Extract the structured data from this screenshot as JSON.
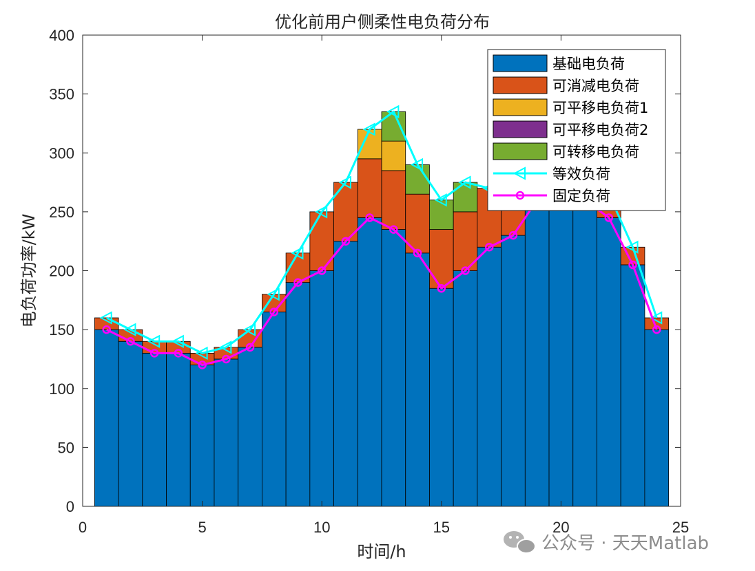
{
  "chart_data": {
    "type": "bar",
    "stacked": true,
    "title": "优化前用户侧柔性电负荷分布",
    "xlabel": "时间/h",
    "ylabel": "电负荷功率/kW",
    "xlim": [
      0,
      25
    ],
    "ylim": [
      0,
      400
    ],
    "xticks": [
      "0",
      "5",
      "10",
      "15",
      "20",
      "25"
    ],
    "yticks": [
      "0",
      "50",
      "100",
      "150",
      "200",
      "250",
      "300",
      "350",
      "400"
    ],
    "x": [
      1,
      2,
      3,
      4,
      5,
      6,
      7,
      8,
      9,
      10,
      11,
      12,
      13,
      14,
      15,
      16,
      17,
      18,
      19,
      20,
      21,
      22,
      23,
      24
    ],
    "series": [
      {
        "name": "基础电负荷",
        "color": "#0072BD",
        "values": [
          150,
          140,
          130,
          130,
          120,
          125,
          135,
          165,
          190,
          200,
          225,
          245,
          235,
          215,
          185,
          200,
          220,
          230,
          260,
          260,
          260,
          245,
          205,
          150
        ]
      },
      {
        "name": "可消减电负荷",
        "color": "#D95319",
        "values": [
          10,
          10,
          10,
          10,
          10,
          10,
          15,
          15,
          25,
          50,
          50,
          50,
          50,
          50,
          50,
          50,
          50,
          45,
          10,
          10,
          10,
          10,
          15,
          10
        ]
      },
      {
        "name": "可平移电负荷1",
        "color": "#EDB120",
        "values": [
          0,
          0,
          0,
          0,
          0,
          0,
          0,
          0,
          0,
          0,
          0,
          25,
          25,
          0,
          0,
          0,
          0,
          0,
          0,
          0,
          0,
          0,
          0,
          0
        ]
      },
      {
        "name": "可平移电负荷2",
        "color": "#7E2F8E",
        "values": [
          0,
          0,
          0,
          0,
          0,
          0,
          0,
          0,
          0,
          0,
          0,
          0,
          0,
          0,
          0,
          0,
          0,
          0,
          0,
          0,
          0,
          0,
          0,
          0
        ]
      },
      {
        "name": "可转移电负荷",
        "color": "#77AC30",
        "values": [
          0,
          0,
          0,
          0,
          0,
          0,
          0,
          0,
          0,
          0,
          0,
          0,
          25,
          25,
          25,
          25,
          0,
          0,
          0,
          0,
          0,
          0,
          0,
          0
        ]
      }
    ],
    "lines": [
      {
        "name": "等效负荷",
        "color": "#00FFFF",
        "marker": "triangle-left",
        "values": [
          160,
          150,
          140,
          140,
          130,
          135,
          150,
          180,
          215,
          250,
          275,
          320,
          335,
          290,
          260,
          275,
          270,
          275,
          280,
          280,
          280,
          265,
          220,
          160
        ]
      },
      {
        "name": "固定负荷",
        "color": "#FF00FF",
        "marker": "hexagram",
        "values": [
          150,
          140,
          130,
          130,
          120,
          125,
          135,
          165,
          190,
          200,
          225,
          245,
          235,
          215,
          185,
          200,
          220,
          230,
          260,
          260,
          260,
          245,
          205,
          150
        ]
      }
    ],
    "legend": "top-right",
    "grid": false
  },
  "watermark": {
    "text": "公众号 · 天天Matlab",
    "icon": "wechat-icon"
  }
}
